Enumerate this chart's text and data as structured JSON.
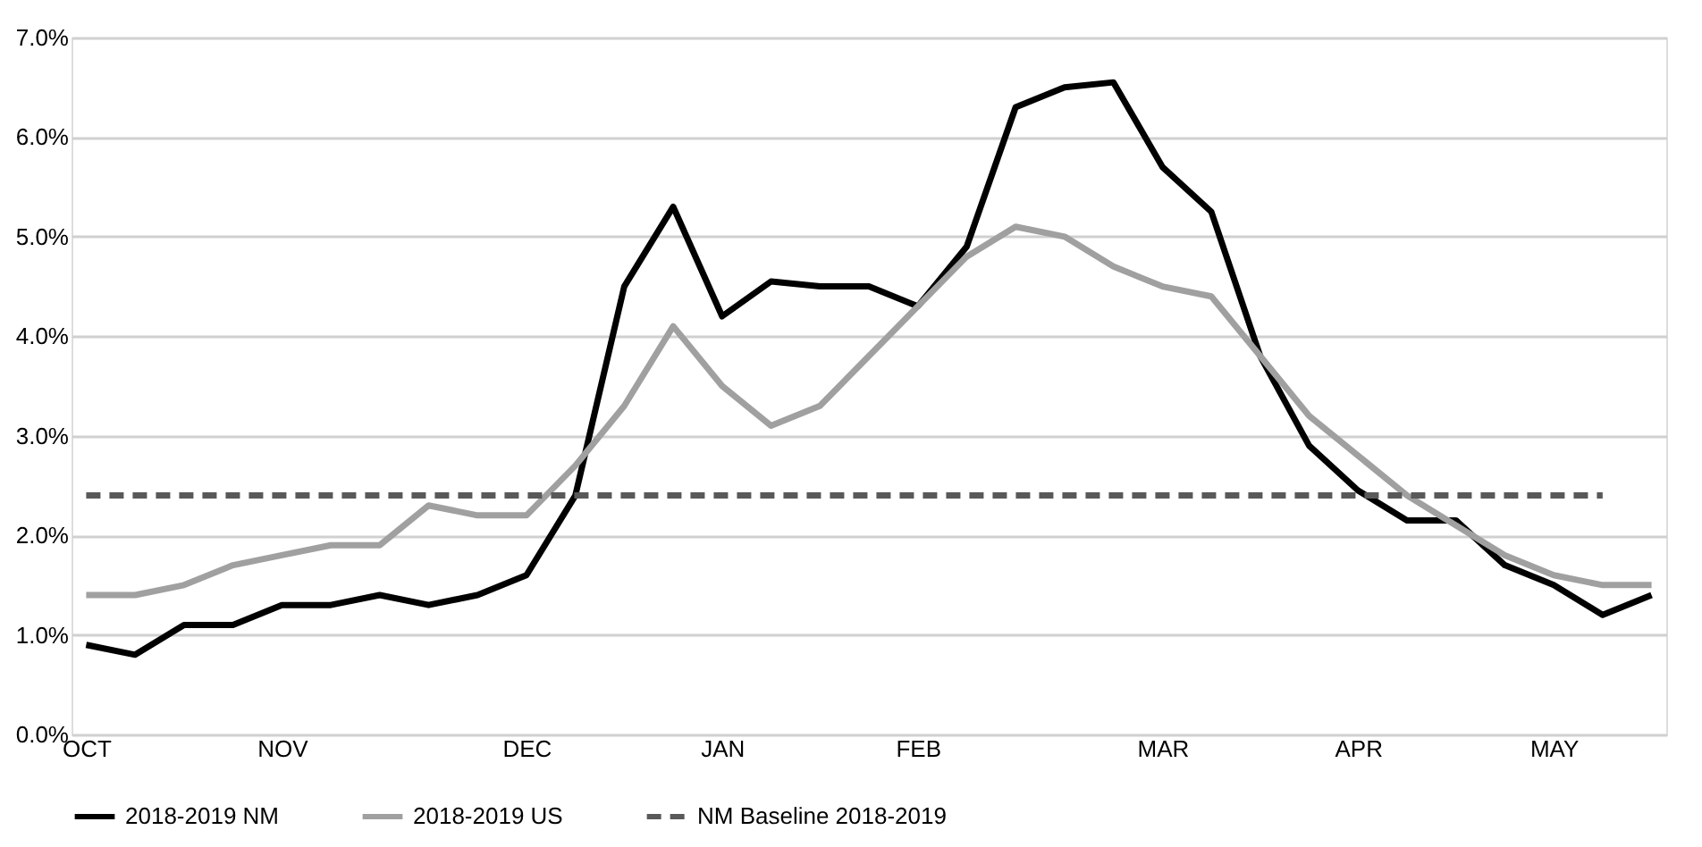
{
  "chart_data": {
    "type": "line",
    "categories": [
      "OCT",
      null,
      null,
      null,
      "NOV",
      null,
      null,
      null,
      null,
      "DEC",
      null,
      null,
      null,
      "JAN",
      null,
      null,
      null,
      "FEB",
      null,
      null,
      null,
      null,
      "MAR",
      null,
      null,
      null,
      "APR",
      null,
      null,
      null,
      "MAY",
      null,
      null
    ],
    "series": [
      {
        "name": "2018-2019 NM",
        "color": "#000000",
        "line_style": "solid",
        "values": [
          0.9,
          0.8,
          1.1,
          1.1,
          1.3,
          1.3,
          1.4,
          1.3,
          1.4,
          1.6,
          2.4,
          4.5,
          5.3,
          4.2,
          4.55,
          4.5,
          4.5,
          4.3,
          4.9,
          6.3,
          6.5,
          6.55,
          5.7,
          5.25,
          3.8,
          2.9,
          2.45,
          2.15,
          2.15,
          1.7,
          1.5,
          1.2,
          1.4
        ]
      },
      {
        "name": "2018-2019 US",
        "color": "#a0a0a0",
        "line_style": "solid",
        "values": [
          1.4,
          1.4,
          1.5,
          1.7,
          1.8,
          1.9,
          1.9,
          2.3,
          2.2,
          2.2,
          2.7,
          3.3,
          4.1,
          3.5,
          3.1,
          3.3,
          3.8,
          4.3,
          4.8,
          5.1,
          5.0,
          4.7,
          4.5,
          4.4,
          3.8,
          3.2,
          2.8,
          2.4,
          2.1,
          1.8,
          1.6,
          1.5,
          1.5
        ]
      },
      {
        "name": "NM Baseline 2018-2019",
        "color": "#595959",
        "line_style": "dashed",
        "values": [
          2.4,
          2.4,
          2.4,
          2.4,
          2.4,
          2.4,
          2.4,
          2.4,
          2.4,
          2.4,
          2.4,
          2.4,
          2.4,
          2.4,
          2.4,
          2.4,
          2.4,
          2.4,
          2.4,
          2.4,
          2.4,
          2.4,
          2.4,
          2.4,
          2.4,
          2.4,
          2.4,
          2.4,
          2.4,
          2.4,
          2.4,
          2.4,
          null
        ]
      }
    ],
    "ylim": [
      0,
      7
    ],
    "yticks": [
      {
        "value": 0,
        "label": "0.0%"
      },
      {
        "value": 1,
        "label": "1.0%"
      },
      {
        "value": 2,
        "label": "2.0%"
      },
      {
        "value": 3,
        "label": "3.0%"
      },
      {
        "value": 4,
        "label": "4.0%"
      },
      {
        "value": 5,
        "label": "5.0%"
      },
      {
        "value": 6,
        "label": "6.0%"
      },
      {
        "value": 7,
        "label": "7.0%"
      }
    ],
    "grid": "y",
    "legend": "bottom",
    "marker": "none"
  }
}
